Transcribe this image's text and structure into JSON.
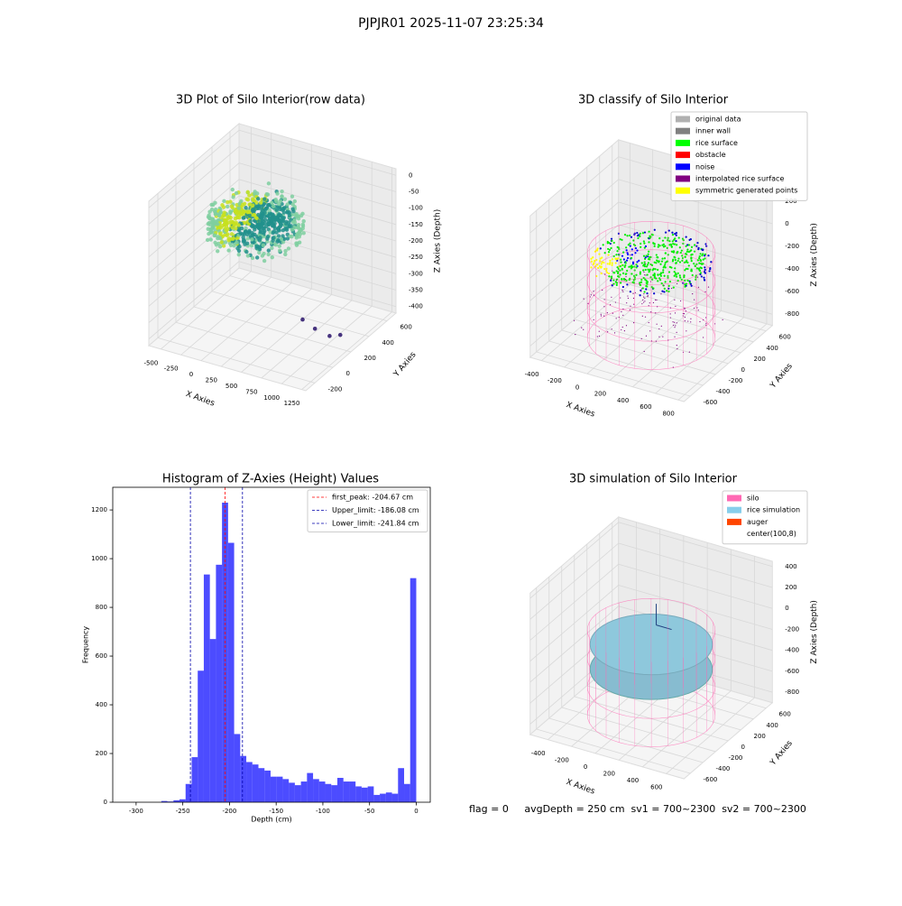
{
  "title": "PJPJR01 2025-11-07 23:25:34",
  "footer": "flag = 0     avgDepth = 250 cm  sv1 = 700~2300  sv2 = 700~2300",
  "chart_data": [
    {
      "type": "scatter3d",
      "title": "3D Plot of Silo Interior(row data)",
      "xlabel": "X Axies",
      "ylabel": "Y Axies",
      "zlabel": "Z Axies (Depth)",
      "xlim": [
        -650,
        1300
      ],
      "ylim": [
        -300,
        700
      ],
      "zlim": [
        -420,
        20
      ],
      "xticks": [
        -500,
        -250,
        0,
        250,
        500,
        750,
        1000,
        1250
      ],
      "yticks": [
        -200,
        0,
        200,
        400,
        600
      ],
      "zticks": [
        0,
        -50,
        -100,
        -150,
        -200,
        -250,
        -300,
        -350,
        -400
      ],
      "style": "raw"
    },
    {
      "type": "scatter3d",
      "title": "3D classify of Silo Interior",
      "xlabel": "X Axies",
      "ylabel": "Y Axies",
      "zlabel": "Z Axies (Depth)",
      "xlim": [
        -500,
        850
      ],
      "ylim": [
        -700,
        700
      ],
      "zlim": [
        -900,
        350
      ],
      "xticks": [
        -400,
        -200,
        0,
        200,
        400,
        600,
        800
      ],
      "yticks": [
        -600,
        -400,
        -200,
        0,
        200,
        400,
        600
      ],
      "zticks": [
        200,
        0,
        -200,
        -400,
        -600,
        -800
      ],
      "legend": "upper right",
      "series": [
        {
          "name": "original data",
          "color": "#b0b0b0"
        },
        {
          "name": "inner wall",
          "color": "#808080"
        },
        {
          "name": "rice surface",
          "color": "#00ff00"
        },
        {
          "name": "obstacle",
          "color": "#ff0000"
        },
        {
          "name": "noise",
          "color": "#0000ff"
        },
        {
          "name": "interpolated rice surface",
          "color": "#800080"
        },
        {
          "name": "symmetric generated points",
          "color": "#ffff00"
        }
      ],
      "style": "classify"
    },
    {
      "type": "histogram",
      "title": "Histogram of Z-Axies (Height) Values",
      "xlabel": "Depth (cm)",
      "ylabel": "Frequency",
      "color": "#0000ff",
      "xlim": [
        -325,
        15
      ],
      "ylim": [
        0,
        1293
      ],
      "xticks": [
        -300,
        -250,
        -200,
        -150,
        -100,
        -50,
        0
      ],
      "yticks": [
        0,
        200,
        400,
        600,
        800,
        1000,
        1200
      ],
      "bins": [
        -273,
        -266.5,
        -260,
        -253.5,
        -247,
        -240.5,
        -234,
        -227.5,
        -221,
        -214.5,
        -208,
        -201.5,
        -195,
        -188.5,
        -182,
        -175.5,
        -169,
        -162.5,
        -156,
        -149.5,
        -143,
        -136.5,
        -130,
        -123.5,
        -117,
        -110.5,
        -104,
        -97.5,
        -91,
        -84.5,
        -78,
        -71.5,
        -65,
        -58.5,
        -52,
        -45.5,
        -39,
        -32.5,
        -26,
        -19.5,
        -13,
        -6.5,
        0
      ],
      "values": [
        5,
        3,
        8,
        12,
        75,
        185,
        540,
        935,
        670,
        975,
        1230,
        1065,
        280,
        190,
        165,
        155,
        140,
        130,
        105,
        105,
        95,
        80,
        70,
        85,
        120,
        95,
        85,
        75,
        70,
        100,
        85,
        85,
        65,
        60,
        65,
        30,
        35,
        40,
        35,
        140,
        75,
        920
      ],
      "legend": "upper right",
      "vlines": [
        {
          "name": "first_peak: -204.67 cm",
          "value": -204.67,
          "color": "#ff0000"
        },
        {
          "name": "Upper_limit: -186.08 cm",
          "value": -186.08,
          "color": "#0000aa"
        },
        {
          "name": "Lower_limit: -241.84 cm",
          "value": -241.84,
          "color": "#0000aa"
        }
      ]
    },
    {
      "type": "scatter3d",
      "title": "3D simulation of Silo Interior",
      "xlabel": "X Axies",
      "ylabel": "Y Axies",
      "zlabel": "Z Axies (Depth)",
      "xlim": [
        -550,
        750
      ],
      "ylim": [
        -700,
        700
      ],
      "zlim": [
        -900,
        450
      ],
      "xticks": [
        -400,
        -200,
        0,
        200,
        400,
        600
      ],
      "yticks": [
        -600,
        -400,
        -200,
        0,
        200,
        400,
        600
      ],
      "zticks": [
        400,
        200,
        0,
        -200,
        -400,
        -600,
        -800
      ],
      "legend": "upper right",
      "series": [
        {
          "name": "silo",
          "color": "#ff69b4"
        },
        {
          "name": "rice simulation",
          "color": "#87ceeb"
        },
        {
          "name": "auger",
          "color": "#ff4500"
        },
        {
          "name": "center(100,8)",
          "color": "#ffffff"
        }
      ],
      "style": "simulation"
    }
  ]
}
